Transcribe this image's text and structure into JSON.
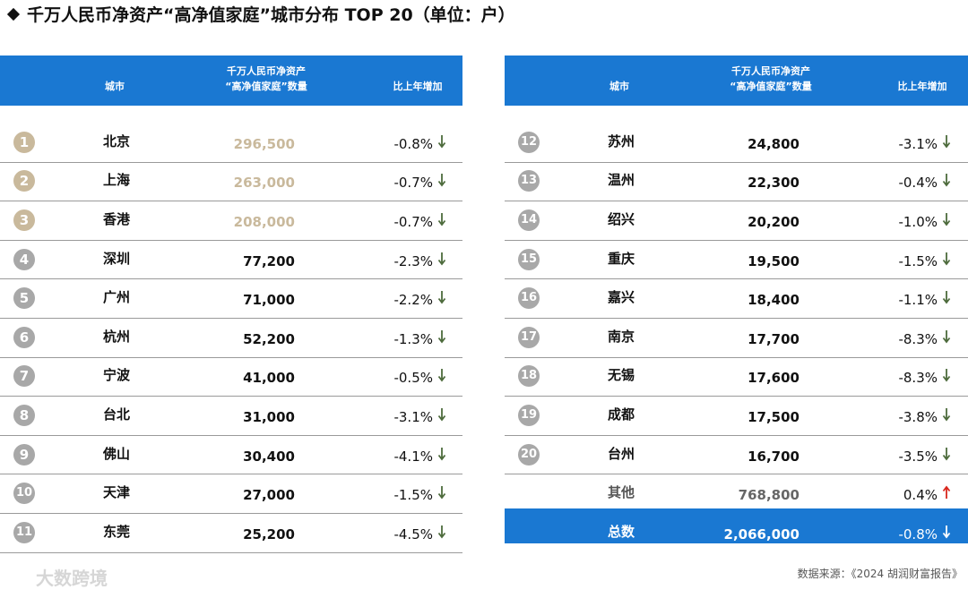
{
  "title": "千万人民币净资产“高净值家庭”城市分布 TOP 20（单位：户）",
  "tables": [
    {
      "header": {
        "city": "城市",
        "count": [
          "千万人民币净资产",
          "“高净值家庭”数量"
        ],
        "change": "比上年增加"
      },
      "rows": [
        {
          "rank": "1",
          "city": "北京",
          "count": "296,500",
          "change": "-0.8%"
        },
        {
          "rank": "2",
          "city": "上海",
          "count": "263,000",
          "change": "-0.7%"
        },
        {
          "rank": "3",
          "city": "香港",
          "count": "208,000",
          "change": "-0.7%"
        },
        {
          "rank": "4",
          "city": "深圳",
          "count": "77,200",
          "change": "-2.3%"
        },
        {
          "rank": "5",
          "city": "广州",
          "count": "71,000",
          "change": "-2.2%"
        },
        {
          "rank": "6",
          "city": "杭州",
          "count": "52,200",
          "change": "-1.3%"
        },
        {
          "rank": "7",
          "city": "宁波",
          "count": "41,000",
          "change": "-0.5%"
        },
        {
          "rank": "8",
          "city": "台北",
          "count": "31,000",
          "change": "-3.1%"
        },
        {
          "rank": "9",
          "city": "佛山",
          "count": "30,400",
          "change": "-4.1%"
        },
        {
          "rank": "10",
          "city": "天津",
          "count": "27,000",
          "change": "-1.5%"
        },
        {
          "rank": "11",
          "city": "东莞",
          "count": "25,200",
          "change": "-4.5%"
        }
      ]
    },
    {
      "header": {
        "city": "城市",
        "count": [
          "千万人民币净资产",
          "“高净值家庭”数量"
        ],
        "change": "比上年增加"
      },
      "rows": [
        {
          "rank": "12",
          "city": "苏州",
          "count": "24,800",
          "change": "-3.1%"
        },
        {
          "rank": "13",
          "city": "温州",
          "count": "22,300",
          "change": "-0.4%"
        },
        {
          "rank": "14",
          "city": "绍兴",
          "count": "20,200",
          "change": "-1.0%"
        },
        {
          "rank": "15",
          "city": "重庆",
          "count": "19,500",
          "change": "-1.5%"
        },
        {
          "rank": "16",
          "city": "嘉兴",
          "count": "18,400",
          "change": "-1.1%"
        },
        {
          "rank": "17",
          "city": "南京",
          "count": "17,700",
          "change": "-8.3%"
        },
        {
          "rank": "18",
          "city": "无锡",
          "count": "17,600",
          "change": "-8.3%"
        },
        {
          "rank": "19",
          "city": "成都",
          "count": "17,500",
          "change": "-3.8%"
        },
        {
          "rank": "20",
          "city": "台州",
          "count": "16,700",
          "change": "-3.5%"
        }
      ],
      "other": {
        "city": "其他",
        "count": "768,800",
        "change": "0.4%"
      },
      "total": {
        "city": "总数",
        "count": "2,066,000",
        "change": "-0.8%"
      }
    }
  ],
  "watermark": "大数跨境",
  "source": "数据来源：《2024 胡润财富报告》"
}
